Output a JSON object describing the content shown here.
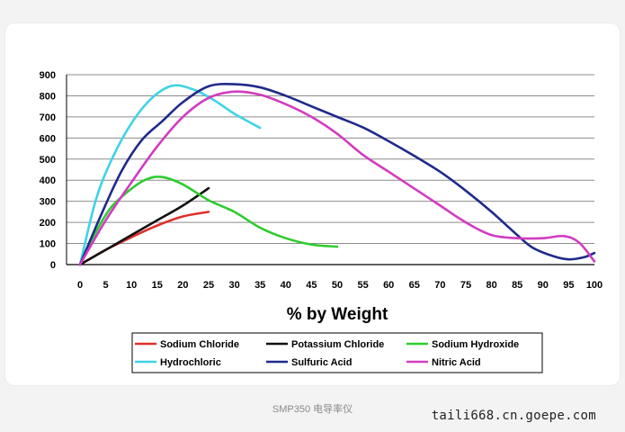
{
  "chart_data": {
    "type": "line",
    "title": "",
    "xlabel": "% by Weight",
    "ylabel": "",
    "xlim": [
      0,
      100
    ],
    "ylim": [
      0,
      900
    ],
    "x_ticks": [
      0,
      5,
      10,
      15,
      20,
      25,
      30,
      35,
      40,
      45,
      50,
      55,
      60,
      65,
      70,
      75,
      80,
      85,
      90,
      95,
      100
    ],
    "y_ticks": [
      0,
      100,
      200,
      300,
      400,
      500,
      600,
      700,
      800,
      900
    ],
    "grid": "horizontal",
    "legend_position": "bottom",
    "series": [
      {
        "name": "Sodium Chloride",
        "color": "#e0302a",
        "points": [
          [
            0,
            0
          ],
          [
            5,
            70
          ],
          [
            10,
            130
          ],
          [
            15,
            185
          ],
          [
            20,
            228
          ],
          [
            25,
            250
          ]
        ]
      },
      {
        "name": "Potassium Chloride",
        "color": "#111111",
        "points": [
          [
            0,
            0
          ],
          [
            5,
            70
          ],
          [
            10,
            140
          ],
          [
            15,
            210
          ],
          [
            20,
            280
          ],
          [
            25,
            362
          ]
        ]
      },
      {
        "name": "Sodium Hydroxide",
        "color": "#2ecc2e",
        "points": [
          [
            0,
            0
          ],
          [
            3,
            150
          ],
          [
            6,
            270
          ],
          [
            10,
            360
          ],
          [
            13,
            405
          ],
          [
            16,
            415
          ],
          [
            20,
            380
          ],
          [
            25,
            305
          ],
          [
            30,
            250
          ],
          [
            35,
            175
          ],
          [
            40,
            125
          ],
          [
            45,
            95
          ],
          [
            50,
            85
          ]
        ]
      },
      {
        "name": "Hydrochloric",
        "color": "#3fd3e6",
        "points": [
          [
            0,
            0
          ],
          [
            3,
            300
          ],
          [
            6,
            490
          ],
          [
            10,
            670
          ],
          [
            14,
            790
          ],
          [
            18,
            848
          ],
          [
            22,
            830
          ],
          [
            26,
            780
          ],
          [
            30,
            715
          ],
          [
            35,
            648
          ]
        ]
      },
      {
        "name": "Sulfuric Acid",
        "color": "#1f2a8a",
        "points": [
          [
            0,
            0
          ],
          [
            4,
            230
          ],
          [
            8,
            440
          ],
          [
            12,
            590
          ],
          [
            16,
            680
          ],
          [
            20,
            770
          ],
          [
            25,
            845
          ],
          [
            30,
            855
          ],
          [
            35,
            840
          ],
          [
            40,
            800
          ],
          [
            45,
            750
          ],
          [
            50,
            700
          ],
          [
            55,
            650
          ],
          [
            60,
            585
          ],
          [
            65,
            515
          ],
          [
            70,
            440
          ],
          [
            75,
            350
          ],
          [
            80,
            250
          ],
          [
            85,
            140
          ],
          [
            88,
            80
          ],
          [
            92,
            40
          ],
          [
            95,
            25
          ],
          [
            98,
            35
          ],
          [
            100,
            55
          ]
        ]
      },
      {
        "name": "Nitric Acid",
        "color": "#d23cbf",
        "points": [
          [
            0,
            0
          ],
          [
            5,
            210
          ],
          [
            10,
            390
          ],
          [
            15,
            560
          ],
          [
            20,
            700
          ],
          [
            25,
            790
          ],
          [
            30,
            820
          ],
          [
            35,
            805
          ],
          [
            40,
            760
          ],
          [
            45,
            700
          ],
          [
            50,
            620
          ],
          [
            55,
            520
          ],
          [
            60,
            440
          ],
          [
            65,
            360
          ],
          [
            70,
            280
          ],
          [
            75,
            200
          ],
          [
            80,
            140
          ],
          [
            85,
            125
          ],
          [
            90,
            125
          ],
          [
            94,
            135
          ],
          [
            97,
            105
          ],
          [
            100,
            15
          ]
        ]
      }
    ]
  },
  "footer": {
    "caption": "SMP350 电导率仪",
    "watermark": "taili668.cn.goepe.com"
  }
}
